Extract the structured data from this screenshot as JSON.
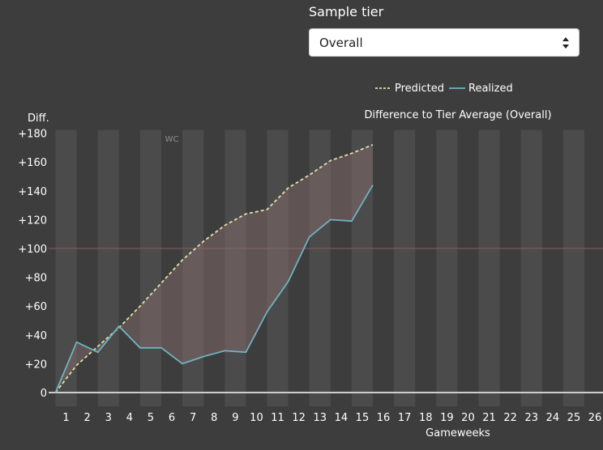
{
  "controls": {
    "sample_tier_label": "Sample tier",
    "sample_tier_value": "Overall"
  },
  "chart_data": {
    "type": "line",
    "title": "Difference to Tier Average (Overall)",
    "xlabel": "Gameweeks",
    "ylabel": "Diff.",
    "categories": [
      1,
      2,
      3,
      4,
      5,
      6,
      7,
      8,
      9,
      10,
      11,
      12,
      13,
      14,
      15,
      16,
      17,
      18,
      19,
      20,
      21,
      22,
      23,
      24,
      25,
      26
    ],
    "xlim": [
      0,
      26
    ],
    "ylim": [
      0,
      180
    ],
    "y_ticks": [
      0,
      20,
      40,
      60,
      80,
      100,
      120,
      140,
      160,
      180
    ],
    "y_tick_labels": [
      "0",
      "+20",
      "+40",
      "+60",
      "+80",
      "+100",
      "+120",
      "+140",
      "+160",
      "+180"
    ],
    "reference_line": 100,
    "annotations": [
      {
        "text": "WC",
        "x": 5.5
      }
    ],
    "legend_position": "top-right",
    "series": [
      {
        "name": "Predicted",
        "style": "dashed",
        "color": "#dfe3a6",
        "x": [
          0,
          1,
          2,
          3,
          4,
          5,
          6,
          7,
          8,
          9,
          10,
          11,
          12,
          13,
          14,
          15
        ],
        "values": [
          0,
          19,
          32,
          45,
          60,
          76,
          92,
          105,
          116,
          124,
          127,
          142,
          151,
          161,
          166,
          172
        ]
      },
      {
        "name": "Realized",
        "style": "solid",
        "color": "#6fb3c0",
        "x": [
          0,
          1,
          2,
          3,
          4,
          5,
          6,
          7,
          8,
          9,
          10,
          11,
          12,
          13,
          14,
          15
        ],
        "values": [
          0,
          35,
          28,
          46,
          31,
          31,
          20,
          25,
          29,
          28,
          56,
          77,
          108,
          120,
          119,
          144
        ]
      }
    ],
    "colors": {
      "background": "#3d3d3d",
      "band": "#4b4b4b",
      "fill_between": "#8a6e6e",
      "reference": "#7a5a5d",
      "zero_line": "#cfcfcf",
      "text": "#ffffff",
      "annotation": "#8e8e8e"
    }
  }
}
